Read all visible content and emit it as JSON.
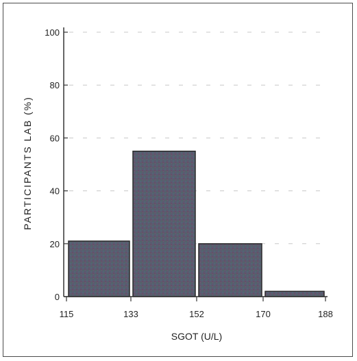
{
  "chart_data": {
    "type": "bar",
    "subtype": "histogram",
    "title": "",
    "xlabel": "SGOT (U/L)",
    "ylabel": "PARTICIPANTS LAB (%)",
    "bin_edges": [
      115,
      133,
      152,
      170,
      188
    ],
    "x_tick_labels": [
      "115",
      "133",
      "152",
      "170",
      "188"
    ],
    "categories": [
      "115-133",
      "133-152",
      "152-170",
      "170-188"
    ],
    "values": [
      21,
      55,
      20,
      2
    ],
    "ylim": [
      0,
      100
    ],
    "y_ticks": [
      0,
      20,
      40,
      60,
      80,
      100
    ],
    "y_tick_labels": [
      "0",
      "20",
      "40",
      "60",
      "80",
      "100"
    ],
    "grid": "faint dashed horizontal",
    "legend": "none",
    "bar_color": "#5a5a6e",
    "bar_edge_color": "#2a2a2a",
    "axis_color": "#333333"
  }
}
